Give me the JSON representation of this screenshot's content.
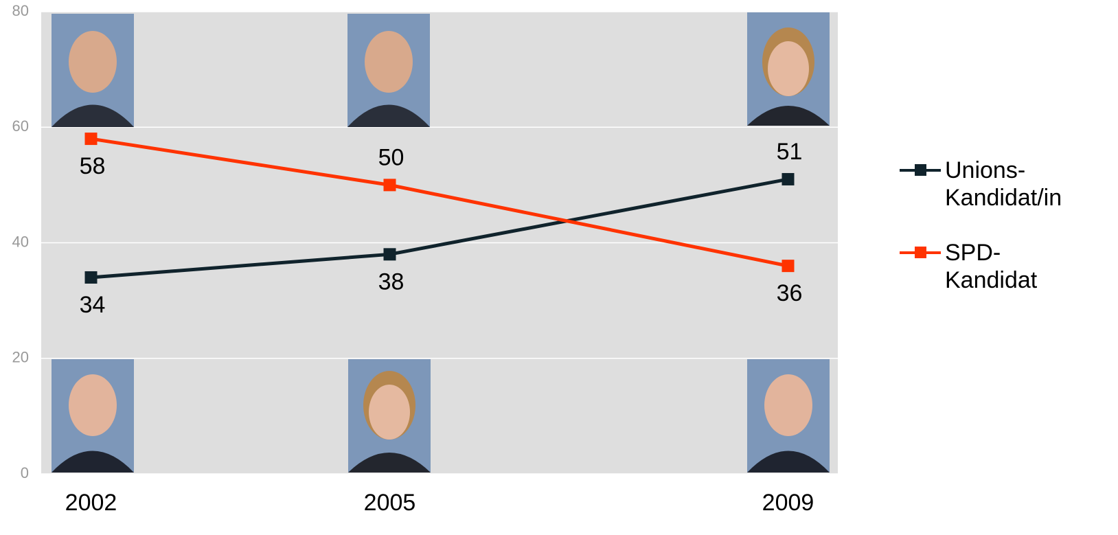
{
  "chart_data": {
    "type": "line",
    "x": [
      2002,
      2005,
      2009
    ],
    "xlim": [
      2001.5,
      2009.5
    ],
    "xticks": [
      2002,
      2005,
      2009
    ],
    "ylim": [
      0,
      80
    ],
    "yticks": [
      0,
      20,
      40,
      60,
      80
    ],
    "grid": true,
    "legend": "right",
    "series": [
      {
        "name": "Unions-Kandidat/in",
        "color": "#10232c",
        "values": [
          34,
          38,
          51
        ]
      },
      {
        "name": "SPD-Kandidat",
        "color": "#ff3300",
        "values": [
          58,
          50,
          36
        ]
      }
    ]
  }
}
